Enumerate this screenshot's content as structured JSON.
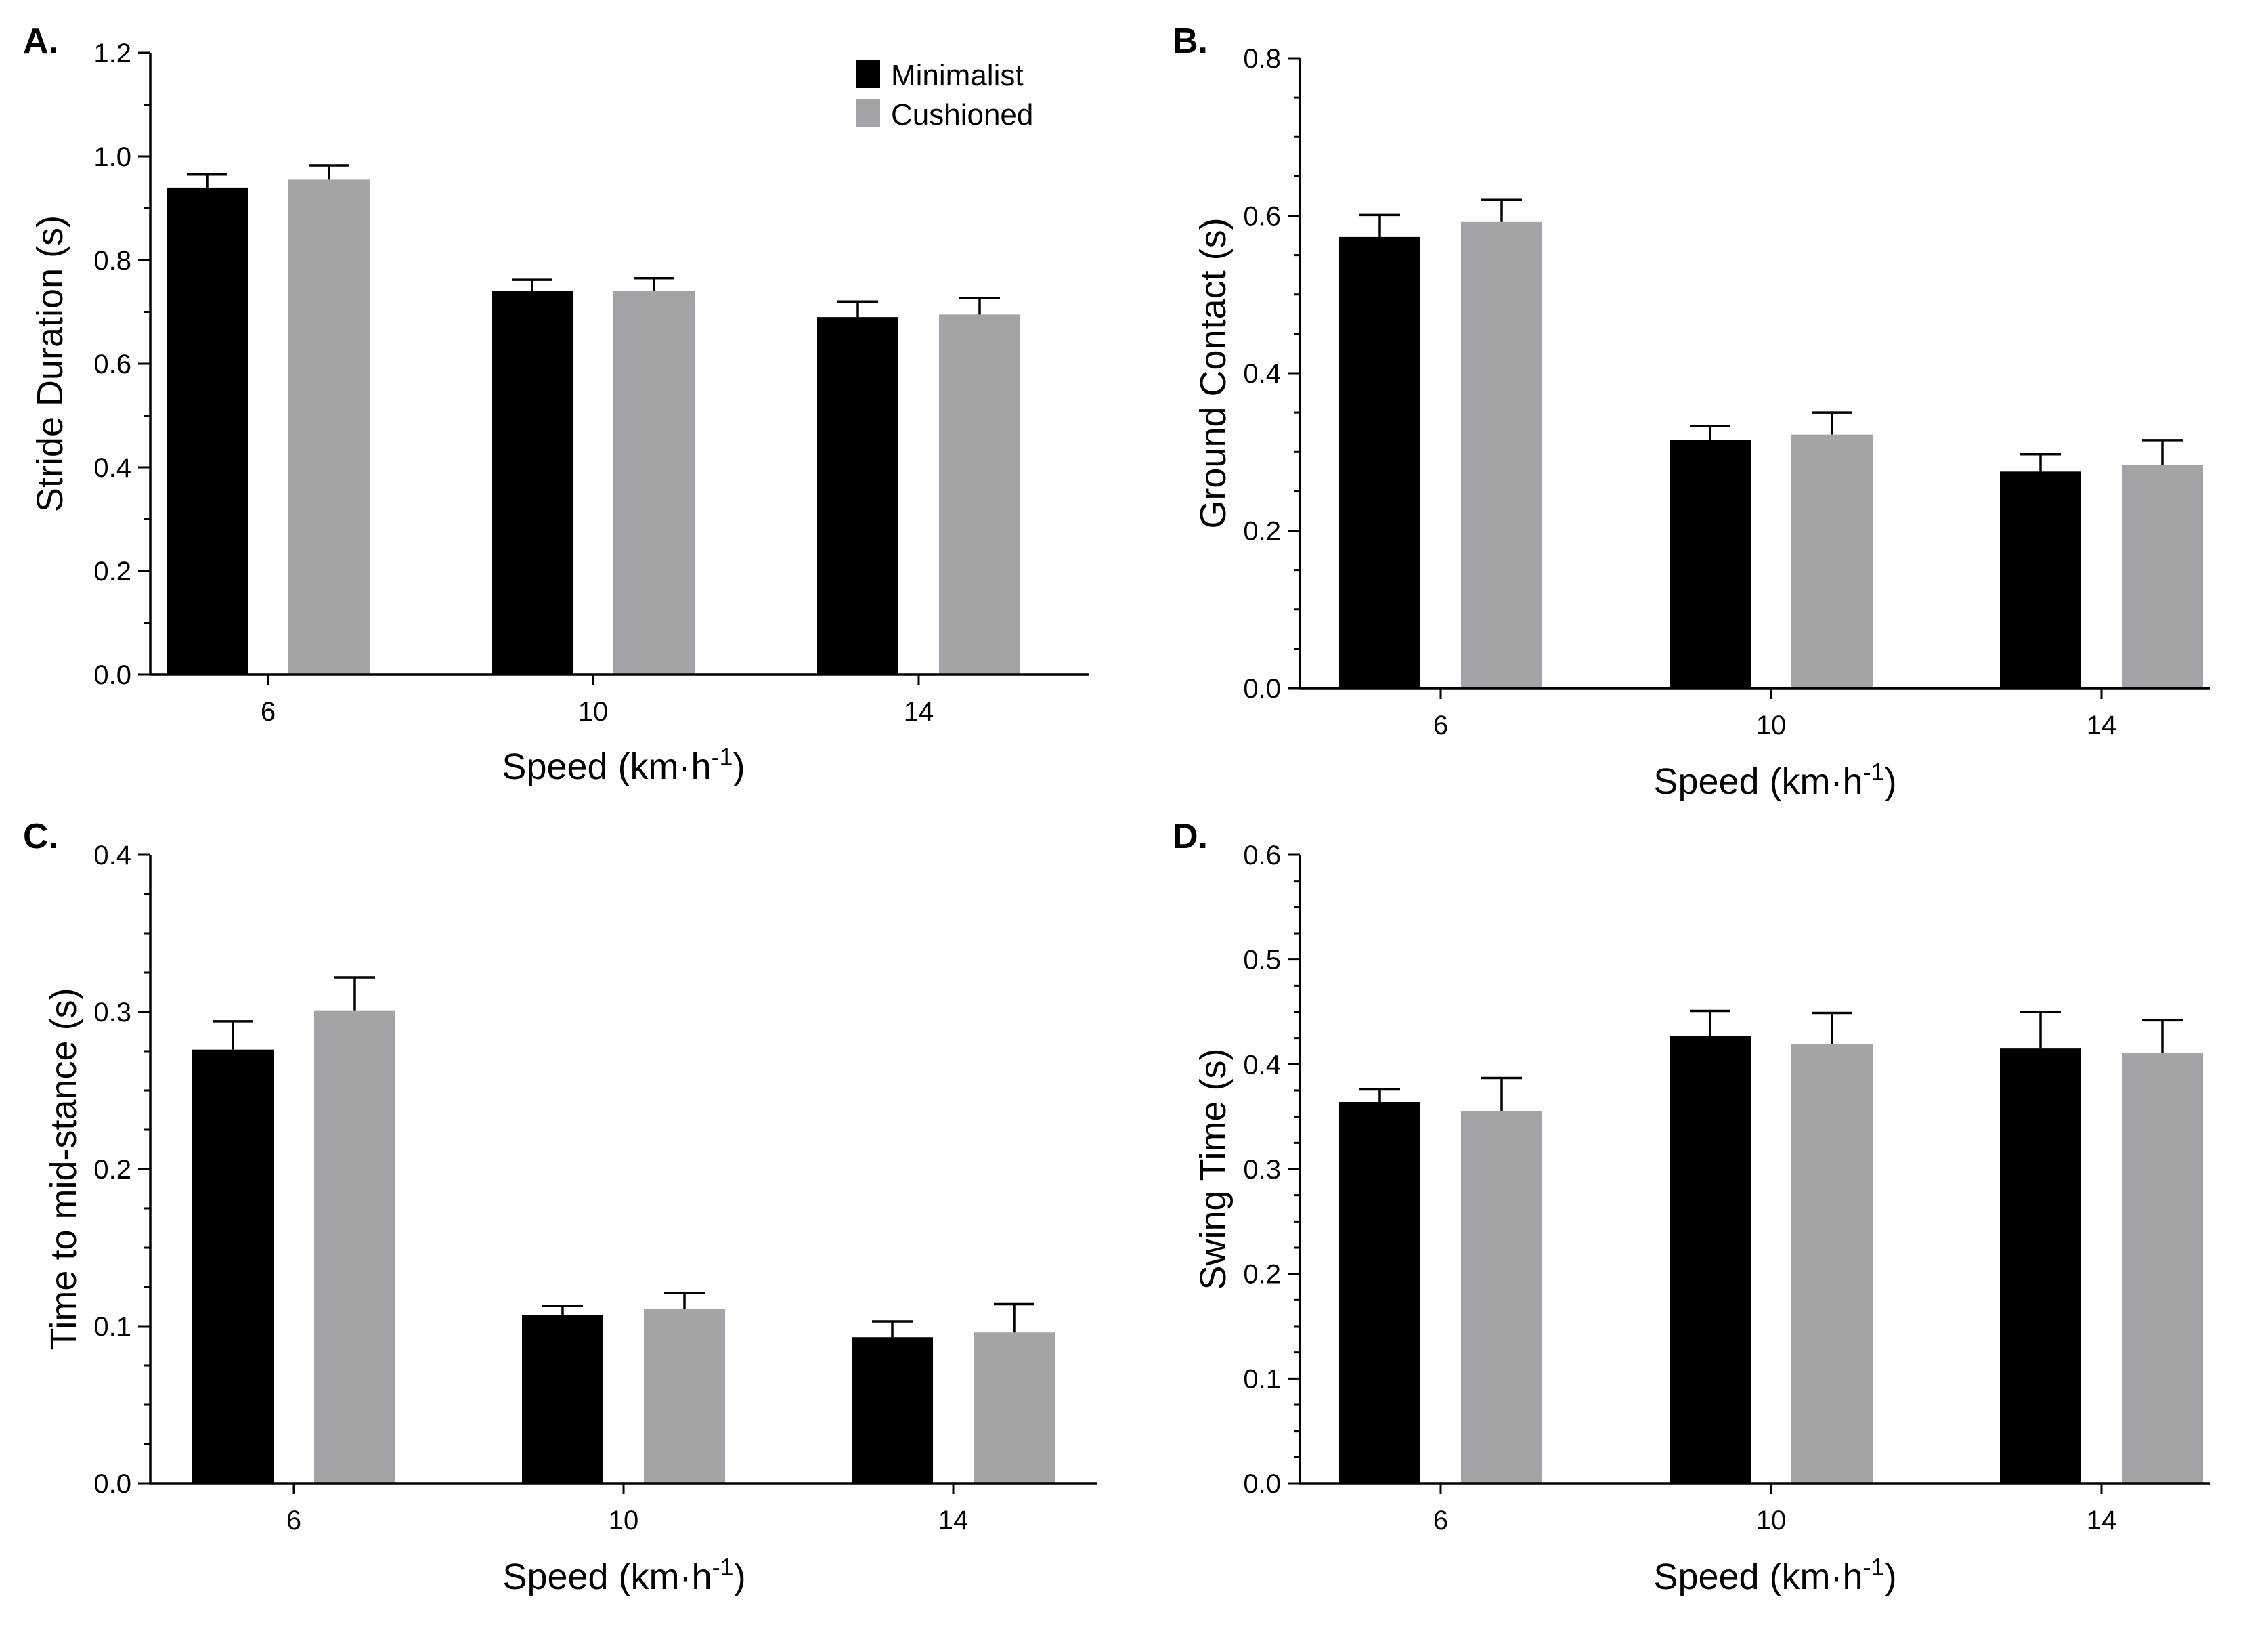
{
  "legend": {
    "position": "top-right",
    "items": [
      {
        "label": "Minimalist",
        "color": "#000000"
      },
      {
        "label": "Cushioned",
        "color": "#a4a4a8"
      }
    ]
  },
  "chart_data": [
    {
      "panel": "A.",
      "type": "bar",
      "categories": [
        "6",
        "10",
        "14"
      ],
      "ylabel": "Stride Duration  (s)",
      "xlabel_main": "Speed (km·h",
      "xlabel_sup": "-1",
      "xlabel_end": ")",
      "ylim": [
        0,
        1.2
      ],
      "yticks": [
        "0.0",
        "0.2",
        "0.4",
        "0.6",
        "0.8",
        "1.0",
        "1.2"
      ],
      "minor_ticks_per_interval": 2,
      "series": [
        {
          "name": "Minimalist",
          "values": [
            0.94,
            0.74,
            0.69
          ],
          "errors": [
            0.025,
            0.022,
            0.03
          ]
        },
        {
          "name": "Cushioned",
          "values": [
            0.955,
            0.74,
            0.695
          ],
          "errors": [
            0.028,
            0.025,
            0.032
          ]
        }
      ]
    },
    {
      "panel": "B.",
      "type": "bar",
      "categories": [
        "6",
        "10",
        "14"
      ],
      "ylabel": "Ground  Contact (s)",
      "xlabel_main": "Speed (km·h",
      "xlabel_sup": "-1",
      "xlabel_end": ")",
      "ylim": [
        0,
        0.8
      ],
      "yticks": [
        "0.0",
        "0.2",
        "0.4",
        "0.6",
        "0.8"
      ],
      "minor_ticks_per_interval": 4,
      "series": [
        {
          "name": "Minimalist",
          "values": [
            0.573,
            0.315,
            0.275
          ],
          "errors": [
            0.028,
            0.018,
            0.022
          ]
        },
        {
          "name": "Cushioned",
          "values": [
            0.592,
            0.322,
            0.283
          ],
          "errors": [
            0.028,
            0.028,
            0.032
          ]
        }
      ]
    },
    {
      "panel": "C.",
      "type": "bar",
      "categories": [
        "6",
        "10",
        "14"
      ],
      "ylabel": "Time to mid-stance (s)",
      "xlabel_main": "Speed (km·h",
      "xlabel_sup": "-1",
      "xlabel_end": ")",
      "ylim": [
        0,
        0.4
      ],
      "yticks": [
        "0.0",
        "0.1",
        "0.2",
        "0.3",
        "0.4"
      ],
      "minor_ticks_per_interval": 4,
      "series": [
        {
          "name": "Minimalist",
          "values": [
            0.276,
            0.107,
            0.093
          ],
          "errors": [
            0.018,
            0.006,
            0.01
          ]
        },
        {
          "name": "Cushioned",
          "values": [
            0.301,
            0.111,
            0.096
          ],
          "errors": [
            0.021,
            0.01,
            0.018
          ]
        }
      ]
    },
    {
      "panel": "D.",
      "type": "bar",
      "categories": [
        "6",
        "10",
        "14"
      ],
      "ylabel": "Swing Time (s)",
      "xlabel_main": "Speed (km·h",
      "xlabel_sup": "-1",
      "xlabel_end": ")",
      "ylim": [
        0,
        0.6
      ],
      "yticks": [
        "0.0",
        "0.1",
        "0.2",
        "0.3",
        "0.4",
        "0.5",
        "0.6"
      ],
      "minor_ticks_per_interval": 4,
      "series": [
        {
          "name": "Minimalist",
          "values": [
            0.364,
            0.427,
            0.415
          ],
          "errors": [
            0.012,
            0.024,
            0.035
          ]
        },
        {
          "name": "Cushioned",
          "values": [
            0.355,
            0.419,
            0.411
          ],
          "errors": [
            0.032,
            0.03,
            0.031
          ]
        }
      ]
    }
  ]
}
